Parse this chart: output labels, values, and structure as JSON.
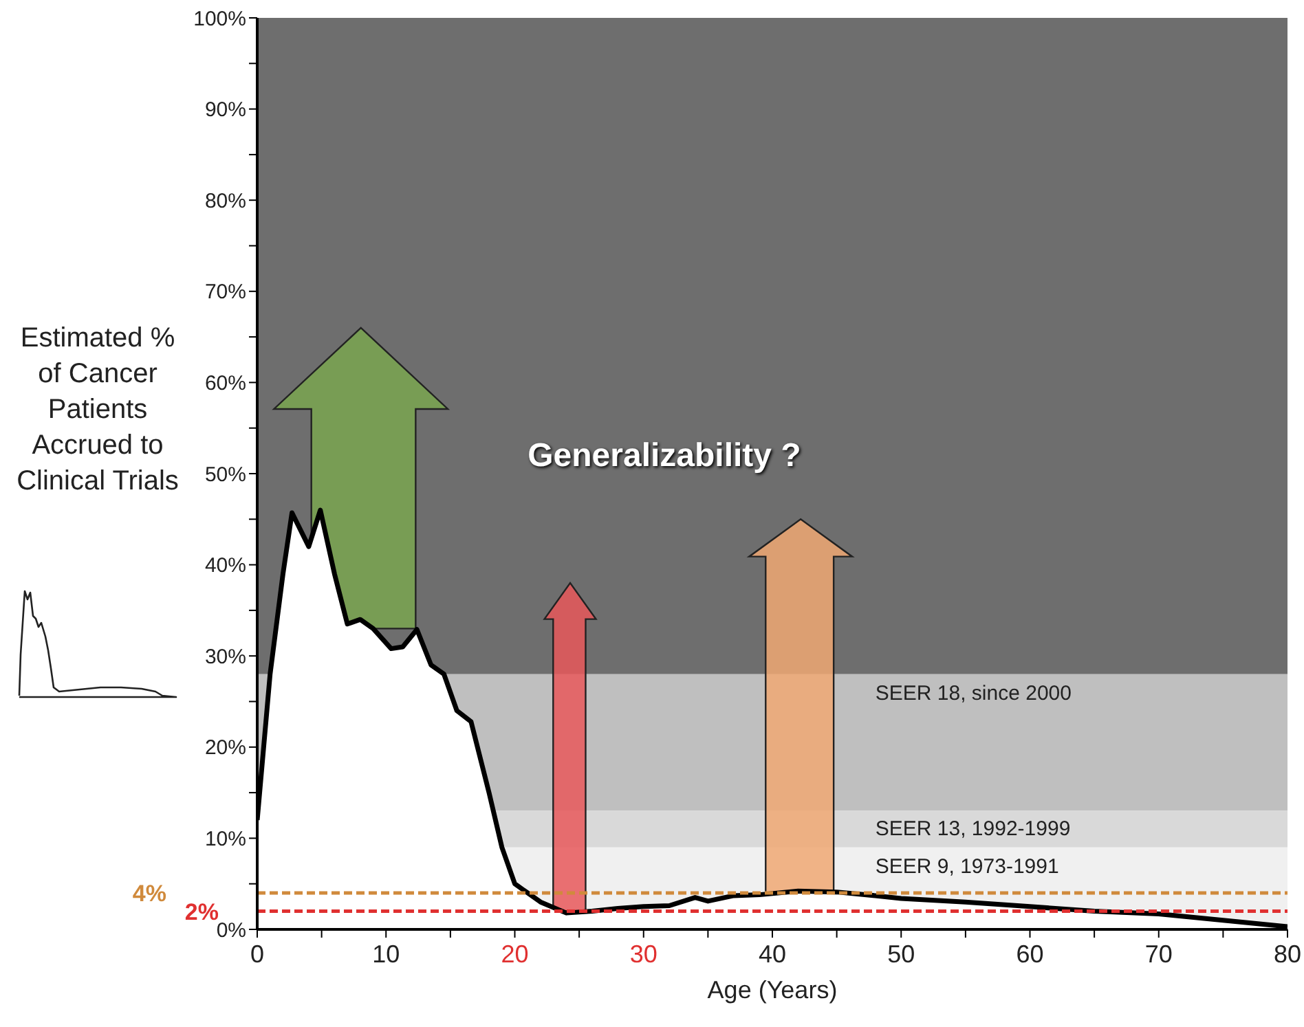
{
  "chart_data": {
    "type": "area",
    "xlabel": "Age (Years)",
    "ylabel": "Estimated % of Cancer Patients Accrued to Clinical Trials",
    "annotations": [
      "Generalizability ?"
    ],
    "series": [
      {
        "color": "#000000",
        "x": [
          0,
          1,
          2,
          2.7,
          4,
          4.9,
          6,
          7,
          8,
          9,
          10.4,
          11.3,
          12.4,
          13.5,
          14.5,
          15.5,
          16.6,
          18,
          19,
          20,
          21,
          22,
          24,
          26,
          28,
          30,
          32,
          34,
          35,
          37,
          39,
          42,
          45,
          48,
          50,
          55,
          60,
          65,
          70,
          75,
          80
        ],
        "values": [
          12,
          28,
          39,
          45.7,
          42,
          46,
          39,
          33.5,
          34,
          33,
          30.8,
          31,
          32.9,
          29,
          28,
          24,
          22.8,
          15,
          9,
          5,
          4,
          3,
          1.8,
          2,
          2.3,
          2.5,
          2.6,
          3.5,
          3.1,
          3.7,
          3.8,
          4.2,
          4.1,
          3.7,
          3.4,
          3,
          2.5,
          2,
          1.7,
          1,
          0.3
        ]
      }
    ],
    "bands": [
      {
        "axis": "y",
        "from": 28,
        "to": 100,
        "color": "#6e6e6e"
      },
      {
        "axis": "y",
        "from": 13,
        "to": 28,
        "color": "#bfbfbf",
        "label": "SEER 18, since 2000"
      },
      {
        "axis": "y",
        "from": 9,
        "to": 13,
        "color": "#d9d9d9",
        "label": "SEER 13, 1992-1999"
      },
      {
        "axis": "y",
        "from": 0,
        "to": 9,
        "color": "#f0f0f0",
        "label": "SEER 9, 1973-1991"
      }
    ],
    "ref_lines": [
      {
        "axis": "y",
        "value": 4,
        "label": "4%",
        "color": "#d08a3c",
        "line_style": "dashed"
      },
      {
        "axis": "y",
        "value": 2,
        "label": "2%",
        "color": "#e03030",
        "line_style": "dashed"
      }
    ],
    "xlim": [
      0,
      80
    ],
    "xticks": [
      0,
      {
        "value": 5,
        "label": null
      },
      10,
      {
        "value": 15,
        "label": null
      },
      20,
      {
        "value": 25,
        "label": null
      },
      30,
      {
        "value": 35,
        "label": null
      },
      40,
      {
        "value": 45,
        "label": null
      },
      50,
      {
        "value": 55,
        "label": null
      },
      60,
      {
        "value": 65,
        "label": null
      },
      70,
      {
        "value": 75,
        "label": null
      },
      80
    ],
    "ylim": [
      0,
      100
    ],
    "yticks": [
      {
        "value": 0,
        "label": "0%"
      },
      {
        "value": 5,
        "label": null
      },
      {
        "value": 10,
        "label": "10%"
      },
      {
        "value": 15,
        "label": null
      },
      {
        "value": 20,
        "label": "20%"
      },
      {
        "value": 25,
        "label": null
      },
      {
        "value": 30,
        "label": "30%"
      },
      {
        "value": 35,
        "label": null
      },
      {
        "value": 40,
        "label": "40%"
      },
      {
        "value": 45,
        "label": null
      },
      {
        "value": 50,
        "label": "50%"
      },
      {
        "value": 55,
        "label": null
      },
      {
        "value": 60,
        "label": "60%"
      },
      {
        "value": 65,
        "label": null
      },
      {
        "value": 70,
        "label": "70%"
      },
      {
        "value": 75,
        "label": null
      },
      {
        "value": 80,
        "label": "80%"
      },
      {
        "value": 85,
        "label": null
      },
      {
        "value": 90,
        "label": "90%"
      },
      {
        "value": 95,
        "label": null
      },
      {
        "value": 100,
        "label": "100%"
      }
    ],
    "grid": false,
    "legend": false
  }
}
